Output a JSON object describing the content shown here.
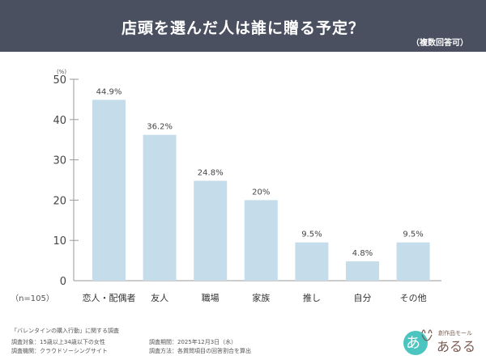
{
  "header": {
    "title": "店頭を選んだ人は誰に贈る予定？",
    "subtitle": "（複数回答可）"
  },
  "chart_data": {
    "type": "bar",
    "title": "店頭を選んだ人は誰に贈る予定？",
    "ylabel": "(%)",
    "ylim": [
      0,
      50
    ],
    "yticks": [
      0,
      10,
      20,
      30,
      40,
      50
    ],
    "categories": [
      "恋人・配偶者",
      "友人",
      "職場",
      "家族",
      "推し",
      "自分",
      "その他"
    ],
    "values": [
      44.9,
      36.2,
      24.8,
      20,
      9.5,
      4.8,
      9.5
    ],
    "data_labels": [
      "44.9%",
      "36.2%",
      "24.8%",
      "20%",
      "9.5%",
      "4.8%",
      "9.5%"
    ],
    "note": "（n=105）",
    "grid": false,
    "bar_color": "#c5dcea"
  },
  "footer": {
    "survey_name": "「バレンタインの購入行動」に関する調査",
    "target": "調査対象：15歳以上34歳以下の女性",
    "period": "調査期間：2025年12月3日（水）",
    "org": "調査機関：クラウドソーシングサイト",
    "method": "調査方法：各質問項目の回答割合を算出"
  },
  "logo": {
    "text": "創作品モール あるる",
    "accent": "#4cc4c0"
  }
}
